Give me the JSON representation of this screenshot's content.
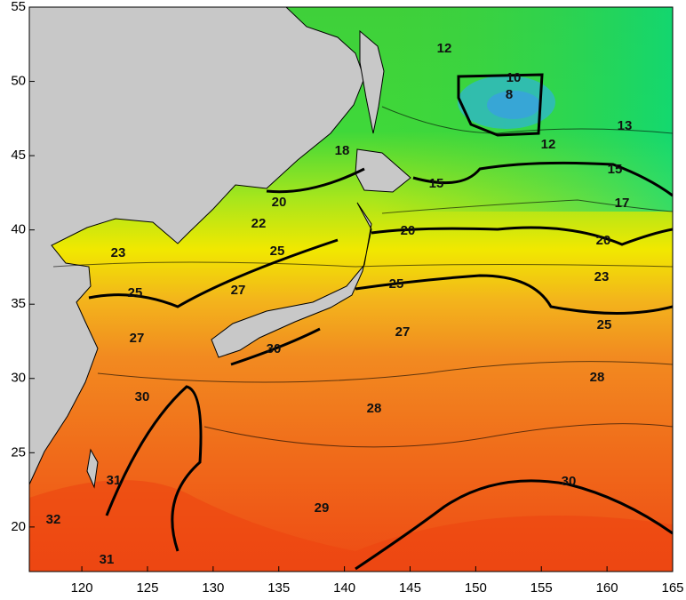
{
  "map": {
    "xlim": [
      116,
      165
    ],
    "ylim": [
      17,
      55
    ],
    "xticks": [
      120,
      125,
      130,
      135,
      140,
      145,
      150,
      155,
      160,
      165
    ],
    "yticks": [
      20,
      25,
      30,
      35,
      40,
      45,
      50,
      55
    ],
    "contour_labels": [
      12,
      10,
      8,
      13,
      12,
      18,
      15,
      15,
      20,
      17,
      22,
      20,
      20,
      23,
      25,
      27,
      25,
      25,
      23,
      25,
      27,
      27,
      30,
      28,
      30,
      28,
      31,
      30,
      29,
      32,
      31
    ]
  }
}
